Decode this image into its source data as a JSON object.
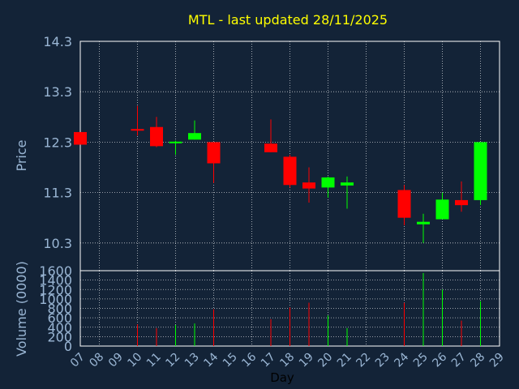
{
  "title": "MTL - last updated 28/11/2025",
  "chart_data": [
    {
      "type": "candlestick",
      "ylabel": "Price",
      "ylim": [
        9.75,
        14.3
      ],
      "yticks": [
        "10.3",
        "11.3",
        "12.3",
        "13.3",
        "14.3"
      ],
      "grid": true,
      "colors": {
        "up": "#00ff00",
        "down": "#ff0000"
      },
      "x": [
        "07",
        "10",
        "11",
        "12",
        "13",
        "14",
        "17",
        "18",
        "19",
        "20",
        "21",
        "24",
        "25",
        "26",
        "27",
        "28"
      ],
      "open": [
        12.5,
        12.56,
        12.6,
        12.29,
        12.35,
        12.3,
        12.27,
        12.01,
        11.5,
        11.4,
        11.44,
        11.35,
        10.67,
        10.77,
        11.15,
        11.15
      ],
      "high": [
        12.5,
        13.02,
        12.8,
        12.33,
        12.73,
        12.3,
        12.75,
        12.05,
        11.8,
        11.62,
        11.62,
        11.45,
        10.88,
        11.3,
        11.52,
        12.3
      ],
      "low": [
        12.25,
        12.43,
        12.2,
        12.05,
        12.35,
        11.49,
        12.1,
        11.4,
        11.1,
        11.2,
        10.98,
        10.65,
        10.3,
        10.77,
        10.92,
        11.05
      ],
      "close": [
        12.25,
        12.54,
        12.22,
        12.31,
        12.48,
        11.88,
        12.1,
        11.45,
        11.38,
        11.6,
        11.5,
        10.8,
        10.72,
        11.16,
        11.05,
        12.3
      ]
    },
    {
      "type": "bar",
      "ylabel": "Volume (0000)",
      "xlabel": "Day",
      "ylim": [
        0,
        1600
      ],
      "yticks": [
        "0",
        "200",
        "400",
        "600",
        "800",
        "1000",
        "1200",
        "1400",
        "1600"
      ],
      "grid": true,
      "x": [
        "07",
        "10",
        "11",
        "12",
        "13",
        "14",
        "17",
        "18",
        "19",
        "20",
        "21",
        "24",
        "25",
        "26",
        "27",
        "28"
      ],
      "values": [
        0,
        460,
        380,
        450,
        480,
        780,
        570,
        820,
        920,
        650,
        380,
        920,
        1550,
        1200,
        540,
        950
      ],
      "xticks": [
        "07",
        "08",
        "09",
        "10",
        "11",
        "12",
        "13",
        "14",
        "15",
        "16",
        "17",
        "18",
        "19",
        "20",
        "21",
        "22",
        "23",
        "24",
        "25",
        "26",
        "27",
        "28",
        "29"
      ]
    }
  ]
}
